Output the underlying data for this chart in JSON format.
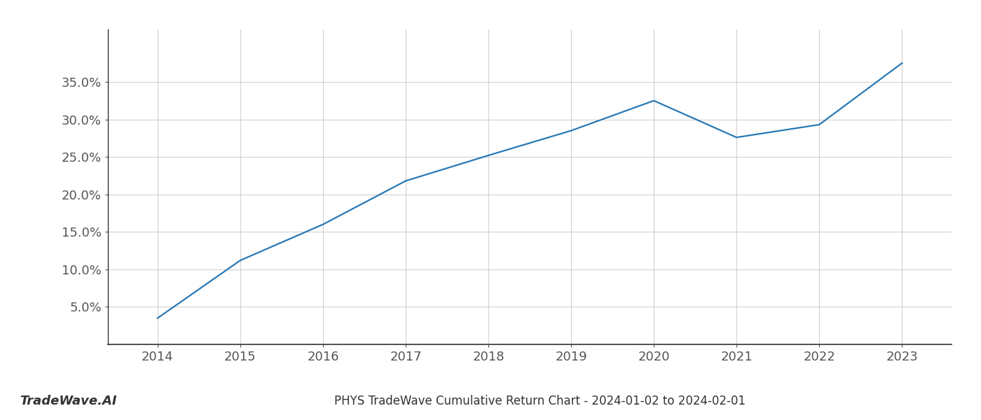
{
  "x_values": [
    2014,
    2015,
    2016,
    2017,
    2018,
    2019,
    2020,
    2021,
    2022,
    2023
  ],
  "y_values": [
    3.5,
    11.2,
    16.0,
    21.8,
    25.2,
    28.5,
    32.5,
    27.6,
    29.3,
    37.5
  ],
  "line_color": "#2878b5",
  "line_width": 1.6,
  "title": "PHYS TradeWave Cumulative Return Chart - 2024-01-02 to 2024-02-01",
  "watermark": "TradeWave.AI",
  "xlim": [
    2013.4,
    2023.6
  ],
  "ylim": [
    0,
    42
  ],
  "yticks": [
    5.0,
    10.0,
    15.0,
    20.0,
    25.0,
    30.0,
    35.0
  ],
  "xticks": [
    2014,
    2015,
    2016,
    2017,
    2018,
    2019,
    2020,
    2021,
    2022,
    2023
  ],
  "background_color": "#ffffff",
  "grid_color": "#cccccc",
  "grid_alpha": 0.9,
  "title_fontsize": 12,
  "tick_fontsize": 13,
  "watermark_fontsize": 13
}
